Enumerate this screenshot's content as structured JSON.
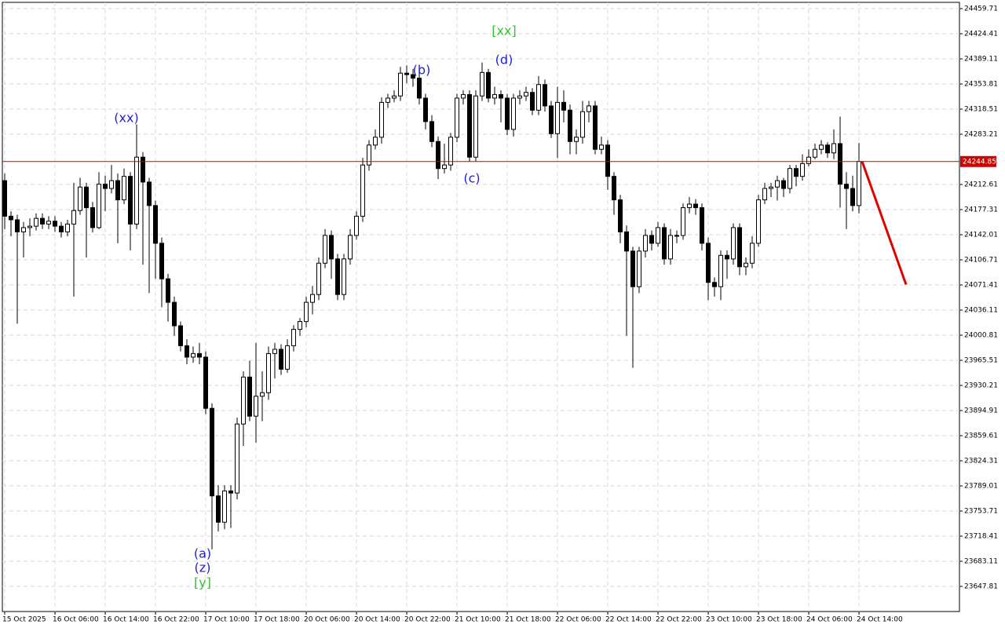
{
  "chart_data": {
    "type": "candlestick",
    "categories": [
      "15 Oct 2025",
      null,
      null,
      null,
      null,
      null,
      null,
      null,
      "16 Oct 06:00",
      null,
      null,
      null,
      null,
      null,
      null,
      null,
      "16 Oct 14:00",
      null,
      null,
      null,
      null,
      null,
      null,
      null,
      "16 Oct 22:00",
      null,
      null,
      null,
      null,
      null,
      null,
      null,
      "17 Oct 10:00",
      null,
      null,
      null,
      null,
      null,
      null,
      null,
      "17 Oct 18:00",
      null,
      null,
      null,
      null,
      null,
      null,
      null,
      "20 Oct 06:00",
      null,
      null,
      null,
      null,
      null,
      null,
      null,
      "20 Oct 14:00",
      null,
      null,
      null,
      null,
      null,
      null,
      null,
      "20 Oct 22:00",
      null,
      null,
      null,
      null,
      null,
      null,
      null,
      "21 Oct 10:00",
      null,
      null,
      null,
      null,
      null,
      null,
      null,
      "21 Oct 18:00",
      null,
      null,
      null,
      null,
      null,
      null,
      null,
      "22 Oct 06:00",
      null,
      null,
      null,
      null,
      null,
      null,
      null,
      "22 Oct 14:00",
      null,
      null,
      null,
      null,
      null,
      null,
      null,
      "22 Oct 22:00",
      null,
      null,
      null,
      null,
      null,
      null,
      null,
      "23 Oct 10:00",
      null,
      null,
      null,
      null,
      null,
      null,
      null,
      "23 Oct 18:00",
      null,
      null,
      null,
      null,
      null,
      null,
      null,
      "24 Oct 06:00",
      null,
      null,
      null,
      null,
      null,
      null,
      null,
      "24 Oct 14:00"
    ],
    "open": [
      24218,
      24168,
      24163,
      24146,
      24152,
      24154,
      24165,
      24157,
      24161,
      24154,
      24146,
      24157,
      24176,
      24209,
      24180,
      24152,
      24213,
      24207,
      24218,
      24191,
      24224,
      24157,
      24251,
      24216,
      24183,
      24130,
      24080,
      24047,
      24014,
      23986,
      23970,
      23975,
      23970,
      23898,
      23775,
      23738,
      23782,
      23779,
      23876,
      23942,
      23887,
      23915,
      23920,
      23975,
      23981,
      23953,
      23986,
      24009,
      24020,
      24047,
      24058,
      24102,
      24141,
      24108,
      24058,
      24108,
      24141,
      24168,
      24240,
      24268,
      24279,
      24328,
      24334,
      24337,
      24369,
      24367,
      24362,
      24334,
      24301,
      24273,
      24235,
      24240,
      24279,
      24334,
      24339,
      24251,
      24337,
      24370,
      24334,
      24339,
      24334,
      24290,
      24334,
      24337,
      24342,
      24317,
      24353,
      24323,
      24284,
      24328,
      24317,
      24273,
      24279,
      24315,
      24323,
      24262,
      24268,
      24224,
      24191,
      24146,
      24119,
      24069,
      24119,
      24141,
      24130,
      24152,
      24108,
      24141,
      24141,
      24180,
      24185,
      24180,
      24130,
      24075,
      24069,
      24113,
      24108,
      24152,
      24097,
      24102,
      24130,
      24191,
      24207,
      24209,
      24218,
      24207,
      24235,
      24224,
      24242,
      24251,
      24262,
      24268,
      24257,
      24270,
      24213,
      24207,
      24183
    ],
    "high": [
      24228,
      24175,
      24170,
      24160,
      24165,
      24172,
      24172,
      24168,
      24168,
      24160,
      24163,
      24215,
      24222,
      24215,
      24188,
      24230,
      24225,
      24240,
      24228,
      24235,
      24230,
      24297,
      24258,
      24222,
      24190,
      24138,
      24087,
      24055,
      24020,
      23995,
      23985,
      23990,
      23978,
      23905,
      23790,
      23790,
      23790,
      23885,
      23950,
      23965,
      23990,
      23950,
      23985,
      23990,
      23988,
      23995,
      24015,
      24025,
      24055,
      24070,
      24110,
      24150,
      24148,
      24115,
      24115,
      24150,
      24175,
      24250,
      24275,
      24290,
      24335,
      24340,
      24345,
      24378,
      24380,
      24375,
      24368,
      24340,
      24310,
      24280,
      24270,
      24285,
      24340,
      24345,
      24345,
      24345,
      24384,
      24375,
      24350,
      24345,
      24340,
      24340,
      24345,
      24350,
      24348,
      24365,
      24360,
      24330,
      24350,
      24345,
      24325,
      24290,
      24330,
      24330,
      24330,
      24280,
      24275,
      24230,
      24198,
      24155,
      24125,
      24125,
      24150,
      24148,
      24160,
      24158,
      24150,
      24148,
      24186,
      24195,
      24192,
      24186,
      24138,
      24082,
      24120,
      24120,
      24158,
      24158,
      24110,
      24140,
      24198,
      24215,
      24215,
      24225,
      24222,
      24240,
      24240,
      24255,
      24262,
      24270,
      24275,
      24272,
      24290,
      24308,
      24230,
      24225,
      24271
    ],
    "low": [
      24150,
      24140,
      24017,
      24110,
      24140,
      24148,
      24150,
      24150,
      24146,
      24138,
      24140,
      24055,
      24170,
      24110,
      24145,
      24150,
      24175,
      24200,
      24130,
      24185,
      24120,
      24150,
      24100,
      24060,
      24080,
      24040,
      24020,
      24000,
      23978,
      23960,
      23962,
      23960,
      23890,
      23700,
      23725,
      23728,
      23730,
      23770,
      23845,
      23880,
      23850,
      23880,
      23910,
      23940,
      23945,
      23948,
      23978,
      24000,
      24012,
      24030,
      24050,
      24095,
      24080,
      24050,
      24050,
      24100,
      24135,
      24160,
      24232,
      24262,
      24270,
      24320,
      24328,
      24330,
      24355,
      24350,
      24325,
      24290,
      24265,
      24220,
      24228,
      24232,
      24272,
      24325,
      24245,
      24245,
      24330,
      24328,
      24325,
      24300,
      24282,
      24280,
      24325,
      24330,
      24310,
      24310,
      24315,
      24278,
      24250,
      24300,
      24255,
      24255,
      24270,
      24300,
      24255,
      24255,
      24205,
      24170,
      24130,
      24000,
      23955,
      24060,
      24110,
      24120,
      24125,
      24100,
      24100,
      24130,
      24135,
      24172,
      24170,
      24120,
      24050,
      24055,
      24050,
      24080,
      24100,
      24085,
      24085,
      24095,
      24125,
      24185,
      24195,
      24190,
      24195,
      24200,
      24210,
      24218,
      24238,
      24248,
      24255,
      24250,
      24248,
      24180,
      24150,
      24175,
      24172
    ],
    "close": [
      24168,
      24163,
      24146,
      24152,
      24154,
      24165,
      24157,
      24161,
      24154,
      24146,
      24157,
      24176,
      24209,
      24180,
      24152,
      24213,
      24207,
      24218,
      24191,
      24224,
      24157,
      24251,
      24216,
      24183,
      24130,
      24080,
      24047,
      24014,
      23986,
      23970,
      23975,
      23970,
      23898,
      23775,
      23738,
      23782,
      23779,
      23876,
      23942,
      23887,
      23915,
      23920,
      23975,
      23981,
      23953,
      23986,
      24009,
      24020,
      24047,
      24058,
      24102,
      24141,
      24108,
      24058,
      24108,
      24141,
      24168,
      24240,
      24268,
      24279,
      24328,
      24334,
      24337,
      24369,
      24367,
      24362,
      24334,
      24301,
      24273,
      24235,
      24240,
      24279,
      24334,
      24339,
      24251,
      24337,
      24370,
      24334,
      24339,
      24334,
      24290,
      24334,
      24337,
      24342,
      24317,
      24353,
      24323,
      24284,
      24328,
      24317,
      24273,
      24279,
      24315,
      24323,
      24262,
      24268,
      24224,
      24191,
      24146,
      24119,
      24069,
      24119,
      24141,
      24130,
      24152,
      24108,
      24141,
      24141,
      24180,
      24185,
      24180,
      24130,
      24075,
      24069,
      24113,
      24108,
      24152,
      24097,
      24102,
      24130,
      24191,
      24207,
      24209,
      24218,
      24207,
      24235,
      24224,
      24242,
      24251,
      24262,
      24268,
      24257,
      24270,
      24213,
      24207,
      24183,
      24245
    ],
    "up_color": "#ffffff",
    "down_color": "#000000",
    "outline_color": "#000000",
    "ylim": [
      23612.51,
      24468.53
    ],
    "yticks": [
      24459.71,
      24424.41,
      24389.11,
      24353.81,
      24318.51,
      24283.21,
      24212.61,
      24177.31,
      24142.01,
      24106.71,
      24071.41,
      24036.11,
      24000.81,
      23965.51,
      23930.21,
      23894.91,
      23859.61,
      23824.31,
      23789.01,
      23753.71,
      23718.41,
      23683.11,
      23647.81
    ],
    "grid": true,
    "current_price": {
      "value": 24244.85,
      "color": "#d00000"
    },
    "forecast": {
      "values": [
        24245,
        24072
      ],
      "color": "#e00000"
    },
    "annotations": [
      {
        "text": "(xx)",
        "color": "#1f1fd0"
      },
      {
        "text": "(b)",
        "color": "#1f1fd0"
      },
      {
        "text": "[xx]",
        "color": "#33c033"
      },
      {
        "text": "(d)",
        "color": "#1f1fd0"
      },
      {
        "text": "(c)",
        "color": "#1f1fd0"
      },
      {
        "text": "(a)",
        "color": "#1f1fd0"
      },
      {
        "text": "(z)",
        "color": "#1f1fd0"
      },
      {
        "text": "[y]",
        "color": "#33c033"
      }
    ]
  }
}
